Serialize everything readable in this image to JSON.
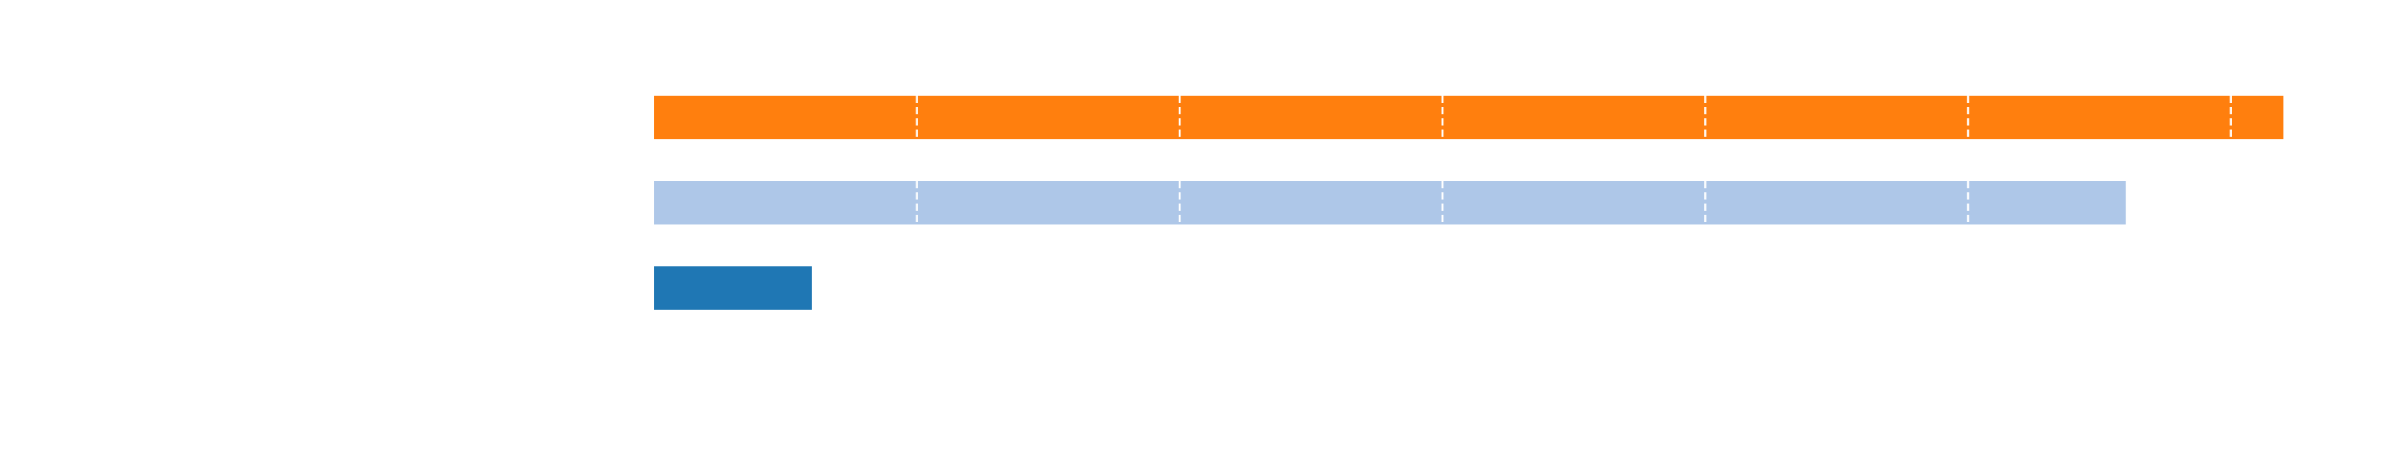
{
  "chart_data": {
    "type": "bar",
    "orientation": "horizontal",
    "categories": [
      "",
      "",
      ""
    ],
    "values": [
      62,
      56,
      6
    ],
    "colors": [
      "#ff7f0e",
      "#aec7e8",
      "#1f77b4"
    ],
    "xlim": [
      0,
      62
    ],
    "grid": true,
    "grid_step": 10,
    "grid_color": "#ffffff",
    "grid_style": "dashed",
    "title": "",
    "xlabel": "",
    "ylabel": ""
  }
}
